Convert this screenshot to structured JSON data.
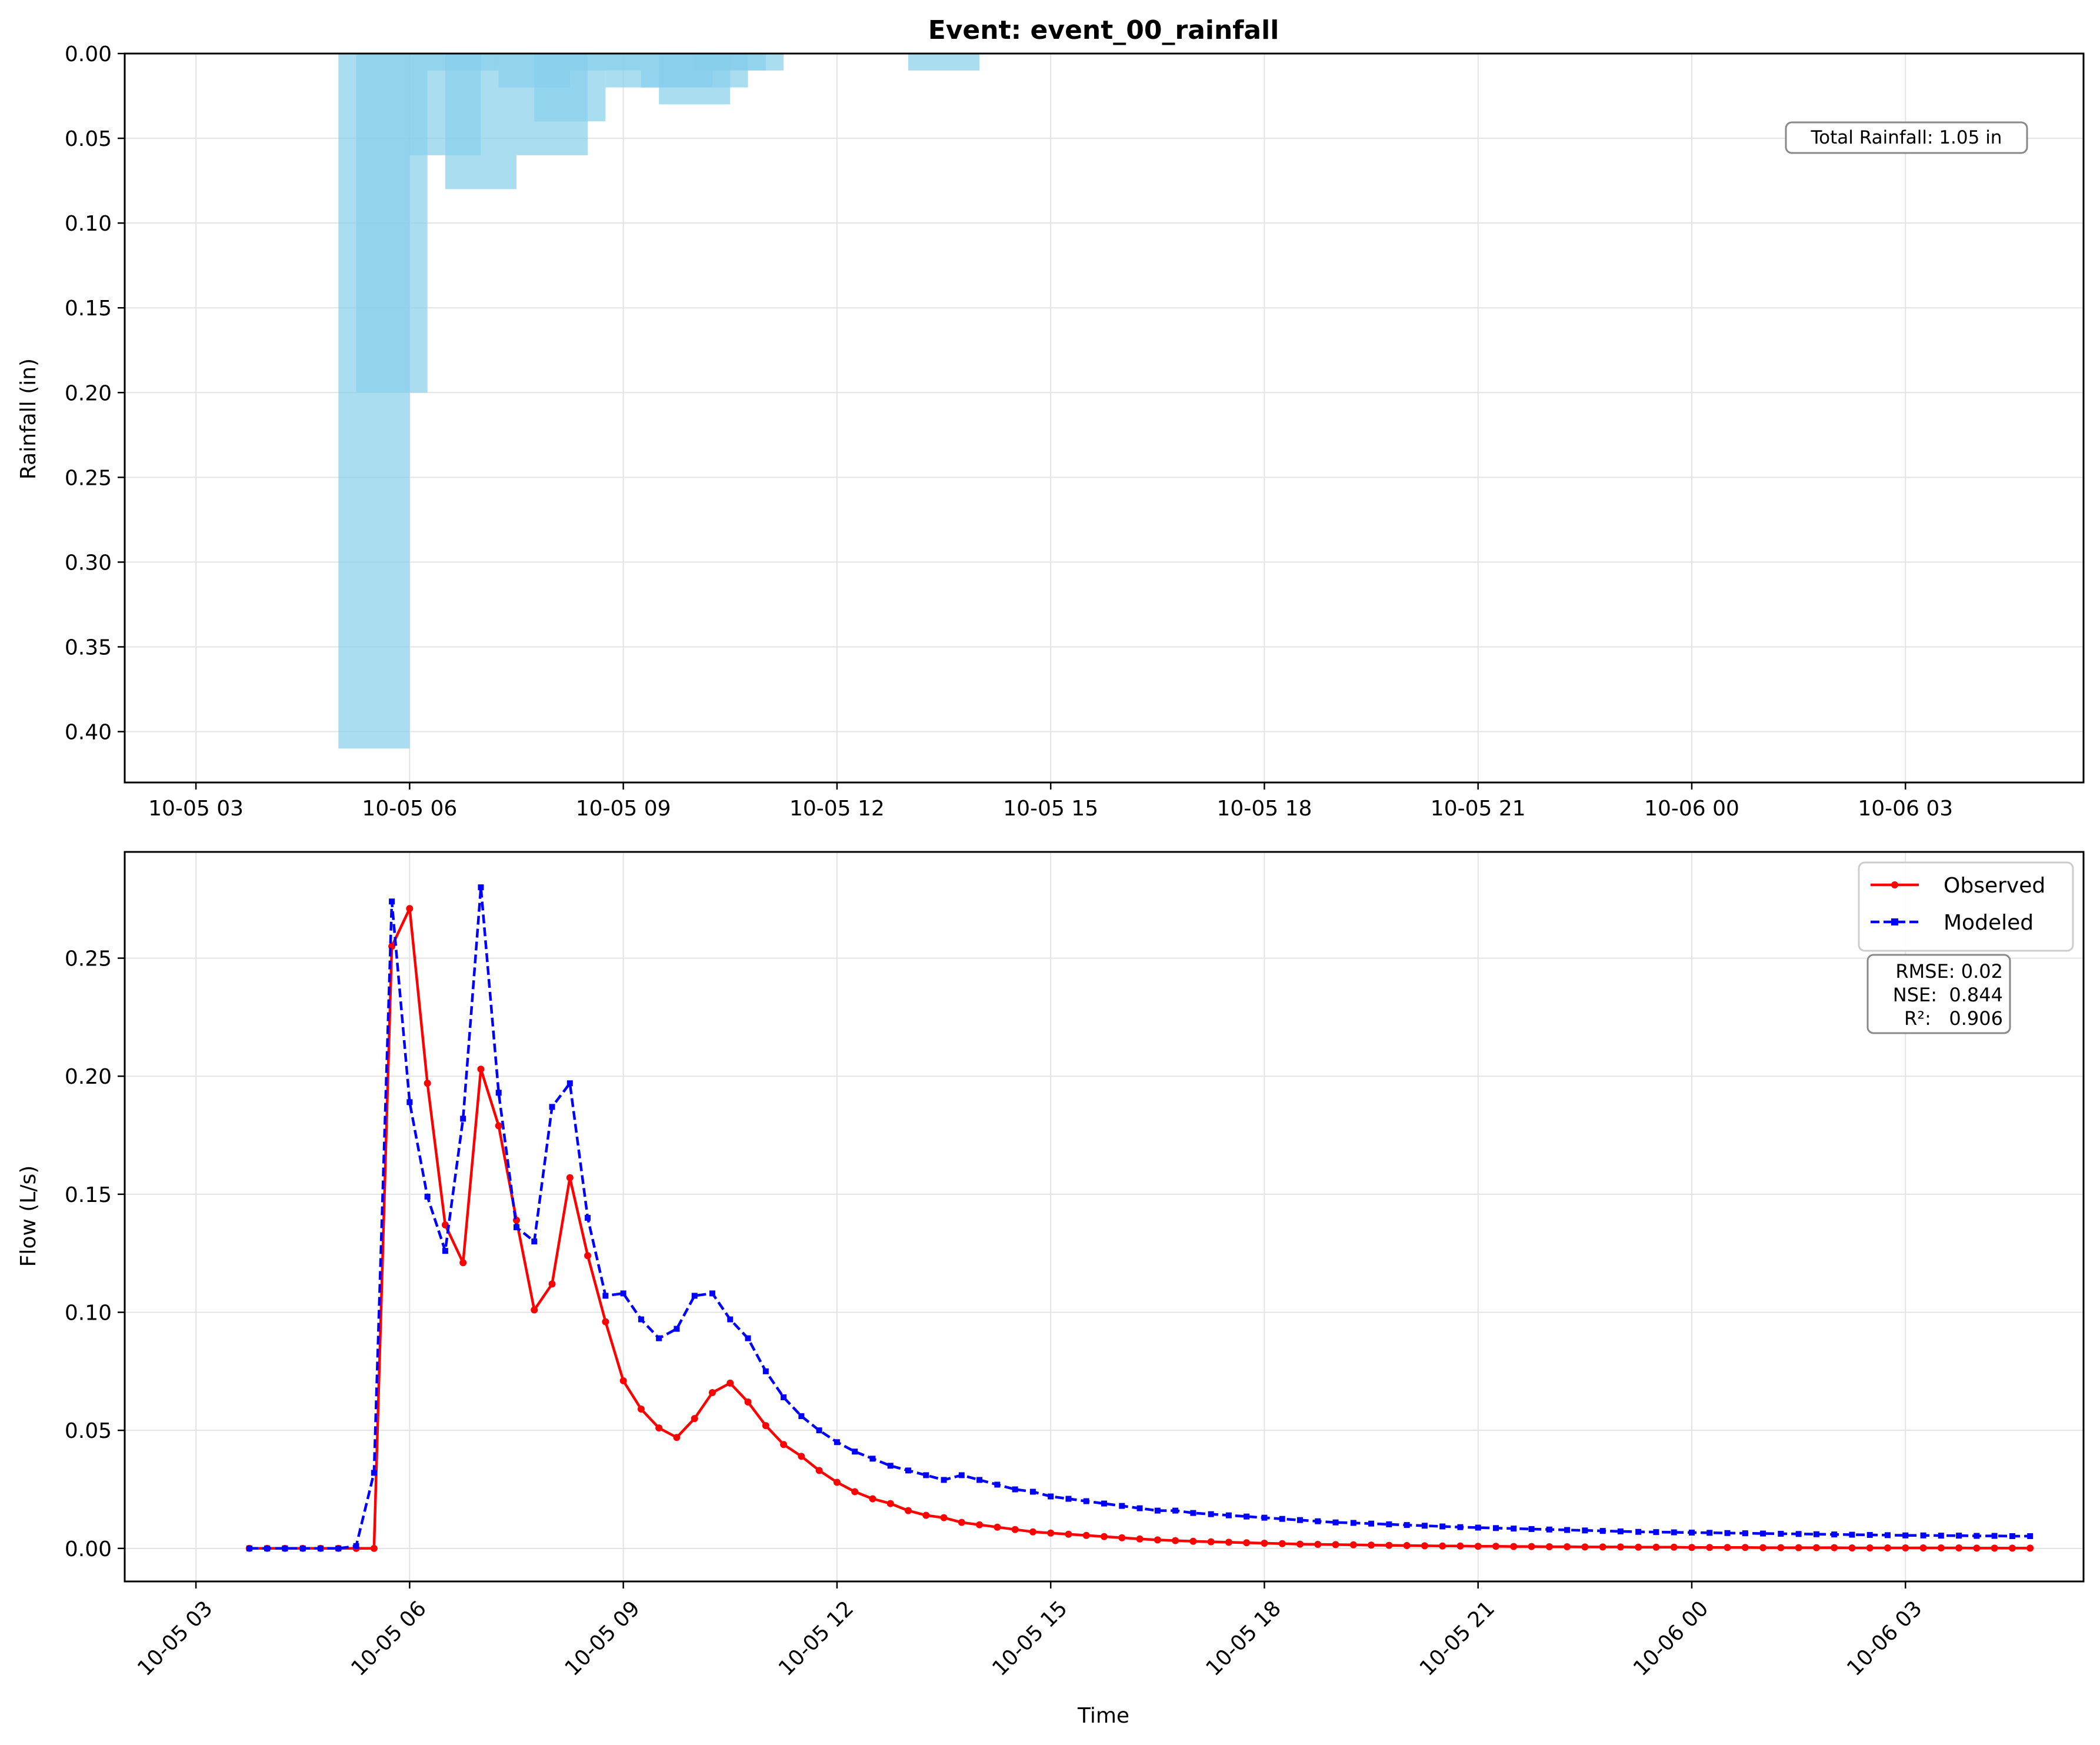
{
  "chart_data": [
    {
      "type": "bar",
      "title": "Event: event_00_rainfall",
      "xlabel": "",
      "ylabel": "Rainfall (in)",
      "y_inverted": true,
      "ylim": [
        0.43,
        0.0
      ],
      "xlim": [
        "2024-10-05 02:00",
        "2024-10-06 05:30"
      ],
      "grid": true,
      "x_ticks": [
        "10-05 03",
        "10-05 06",
        "10-05 09",
        "10-05 12",
        "10-05 15",
        "10-05 18",
        "10-05 21",
        "10-06 00",
        "10-06 03"
      ],
      "y_ticks": [
        "0.00",
        "0.05",
        "0.10",
        "0.15",
        "0.20",
        "0.25",
        "0.30",
        "0.35",
        "0.40"
      ],
      "color": "#87CEEB",
      "bars": [
        {
          "start": "2024-10-05 05:00",
          "end": "2024-10-05 06:00",
          "value": 0.41
        },
        {
          "start": "2024-10-05 05:15",
          "end": "2024-10-05 06:15",
          "value": 0.2
        },
        {
          "start": "2024-10-05 06:00",
          "end": "2024-10-05 07:00",
          "value": 0.06
        },
        {
          "start": "2024-10-05 06:30",
          "end": "2024-10-05 07:30",
          "value": 0.08
        },
        {
          "start": "2024-10-05 06:15",
          "end": "2024-10-05 07:15",
          "value": 0.01
        },
        {
          "start": "2024-10-05 07:15",
          "end": "2024-10-05 08:15",
          "value": 0.02
        },
        {
          "start": "2024-10-05 07:30",
          "end": "2024-10-05 08:30",
          "value": 0.06
        },
        {
          "start": "2024-10-05 07:45",
          "end": "2024-10-05 08:45",
          "value": 0.04
        },
        {
          "start": "2024-10-05 08:15",
          "end": "2024-10-05 09:15",
          "value": 0.01
        },
        {
          "start": "2024-10-05 08:45",
          "end": "2024-10-05 09:45",
          "value": 0.02
        },
        {
          "start": "2024-10-05 09:15",
          "end": "2024-10-05 10:15",
          "value": 0.02
        },
        {
          "start": "2024-10-05 09:30",
          "end": "2024-10-05 10:30",
          "value": 0.03
        },
        {
          "start": "2024-10-05 09:45",
          "end": "2024-10-05 10:45",
          "value": 0.02
        },
        {
          "start": "2024-10-05 10:00",
          "end": "2024-10-05 11:00",
          "value": 0.01
        },
        {
          "start": "2024-10-05 10:15",
          "end": "2024-10-05 11:15",
          "value": 0.01
        },
        {
          "start": "2024-10-05 13:00",
          "end": "2024-10-05 14:00",
          "value": 0.01
        }
      ],
      "annotation": "Total Rainfall: 1.05 in"
    },
    {
      "type": "line",
      "title": "",
      "xlabel": "Time",
      "ylabel": "Flow (L/s)",
      "ylim": [
        -0.014,
        0.295
      ],
      "xlim": [
        "2024-10-05 02:00",
        "2024-10-06 05:30"
      ],
      "grid": true,
      "x_ticks": [
        "10-05 03",
        "10-05 06",
        "10-05 09",
        "10-05 12",
        "10-05 15",
        "10-05 18",
        "10-05 21",
        "10-06 00",
        "10-06 03"
      ],
      "y_ticks": [
        "0.00",
        "0.05",
        "0.10",
        "0.15",
        "0.20",
        "0.25"
      ],
      "legend_position": "top-right",
      "x_start": "2024-10-05 03:45",
      "x_step_minutes": 15,
      "series": [
        {
          "name": "Observed",
          "color": "#FF0000",
          "dash": "solid",
          "marker": "circle",
          "values": [
            0,
            0,
            0,
            0,
            0,
            0,
            0,
            0,
            0.255,
            0.271,
            0.197,
            0.137,
            0.121,
            0.203,
            0.179,
            0.139,
            0.101,
            0.112,
            0.157,
            0.124,
            0.096,
            0.071,
            0.059,
            0.051,
            0.047,
            0.055,
            0.066,
            0.07,
            0.062,
            0.052,
            0.044,
            0.039,
            0.033,
            0.028,
            0.024,
            0.021,
            0.019,
            0.016,
            0.014,
            0.013,
            0.011,
            0.01,
            0.009,
            0.008,
            0.007,
            0.0065,
            0.006,
            0.0055,
            0.005,
            0.0045,
            0.004,
            0.0036,
            0.0033,
            0.003,
            0.0028,
            0.0026,
            0.0024,
            0.0022,
            0.002,
            0.0018,
            0.0017,
            0.0016,
            0.0015,
            0.0014,
            0.0013,
            0.0012,
            0.0011,
            0.001,
            0.001,
            0.0009,
            0.0009,
            0.0008,
            0.0008,
            0.0007,
            0.0007,
            0.0006,
            0.0006,
            0.0006,
            0.0005,
            0.0005,
            0.0005,
            0.0004,
            0.0004,
            0.0004,
            0.0004,
            0.0003,
            0.0003,
            0.0003,
            0.0003,
            0.0003,
            0.0002,
            0.0002,
            0.0002,
            0.0002,
            0.0002,
            0.0002,
            0.0002,
            0.0001,
            0.0001,
            0.0001,
            0.0001
          ]
        },
        {
          "name": "Modeled",
          "color": "#0000FF",
          "dash": "dashed",
          "marker": "square",
          "values": [
            0,
            0,
            0,
            0,
            0,
            0,
            0.001,
            0.032,
            0.274,
            0.189,
            0.149,
            0.126,
            0.182,
            0.28,
            0.193,
            0.136,
            0.13,
            0.187,
            0.197,
            0.14,
            0.107,
            0.108,
            0.097,
            0.089,
            0.093,
            0.107,
            0.108,
            0.097,
            0.089,
            0.075,
            0.064,
            0.056,
            0.05,
            0.045,
            0.041,
            0.038,
            0.035,
            0.033,
            0.031,
            0.029,
            0.031,
            0.029,
            0.027,
            0.025,
            0.024,
            0.022,
            0.021,
            0.02,
            0.019,
            0.018,
            0.017,
            0.016,
            0.016,
            0.015,
            0.0145,
            0.014,
            0.0135,
            0.013,
            0.0125,
            0.012,
            0.0115,
            0.011,
            0.0108,
            0.0105,
            0.0102,
            0.0099,
            0.0096,
            0.0093,
            0.009,
            0.0088,
            0.0086,
            0.0084,
            0.0082,
            0.008,
            0.0078,
            0.0076,
            0.0074,
            0.0072,
            0.007,
            0.0069,
            0.0068,
            0.0067,
            0.0066,
            0.0065,
            0.0064,
            0.0063,
            0.0062,
            0.0061,
            0.006,
            0.0059,
            0.0058,
            0.0057,
            0.0056,
            0.0055,
            0.0055,
            0.0054,
            0.0054,
            0.0053,
            0.0053,
            0.0052,
            0.0052
          ]
        }
      ],
      "stats": {
        "rmse": "RMSE: 0.02",
        "nse": "NSE:  0.844",
        "r2": "R²:   0.906"
      }
    }
  ]
}
